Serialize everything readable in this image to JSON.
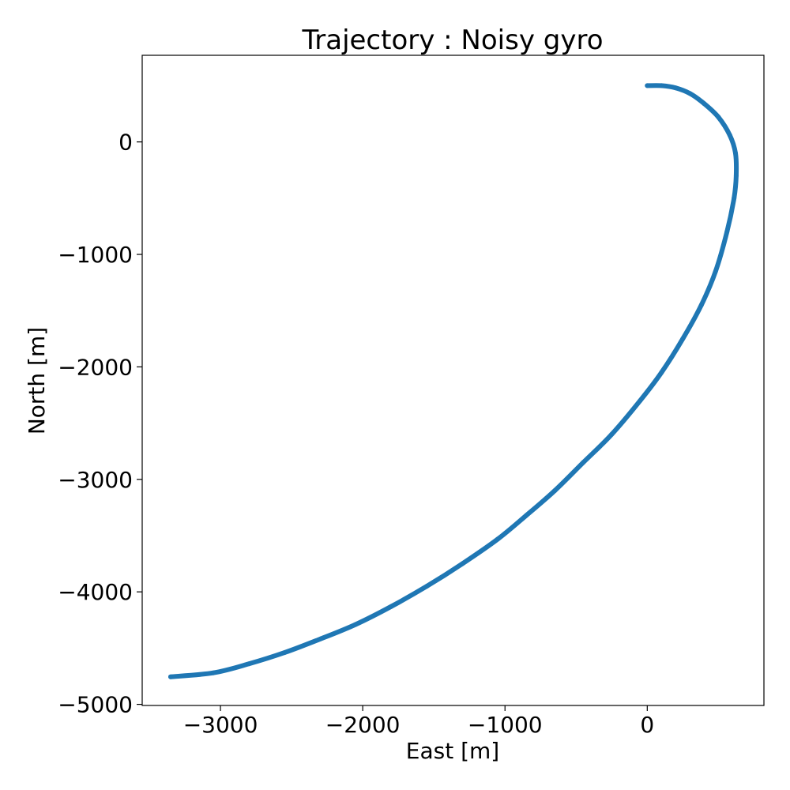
{
  "chart_data": {
    "type": "line",
    "title": "Trajectory : Noisy gyro",
    "xlabel": "East [m]",
    "ylabel": "North [m]",
    "xlim": [
      -3550,
      820
    ],
    "ylim": [
      -5010,
      770
    ],
    "xticks": [
      -3000,
      -2000,
      -1000,
      0
    ],
    "yticks": [
      0,
      -1000,
      -2000,
      -3000,
      -4000,
      -5000
    ],
    "xtick_labels": [
      "−3000",
      "−2000",
      "−1000",
      "0"
    ],
    "ytick_labels": [
      "0",
      "−1000",
      "−2000",
      "−3000",
      "−4000",
      "−5000"
    ],
    "grid": false,
    "legend": "none",
    "color": "#1f77b4",
    "series": [
      {
        "x": [
          0,
          100,
          200,
          300,
          400,
          500,
          580,
          620,
          625,
          610,
          560,
          480,
          380,
          250,
          100,
          -50,
          -250,
          -450,
          -650,
          -850,
          -1050,
          -1300,
          -1550,
          -1800,
          -2050,
          -2300,
          -2550,
          -2800,
          -3050,
          -3350
        ],
        "y": [
          500,
          500,
          480,
          430,
          340,
          220,
          60,
          -100,
          -300,
          -500,
          -800,
          -1150,
          -1450,
          -1750,
          -2050,
          -2300,
          -2600,
          -2850,
          -3100,
          -3320,
          -3530,
          -3750,
          -3950,
          -4130,
          -4290,
          -4420,
          -4540,
          -4640,
          -4720,
          -4755
        ]
      }
    ]
  }
}
